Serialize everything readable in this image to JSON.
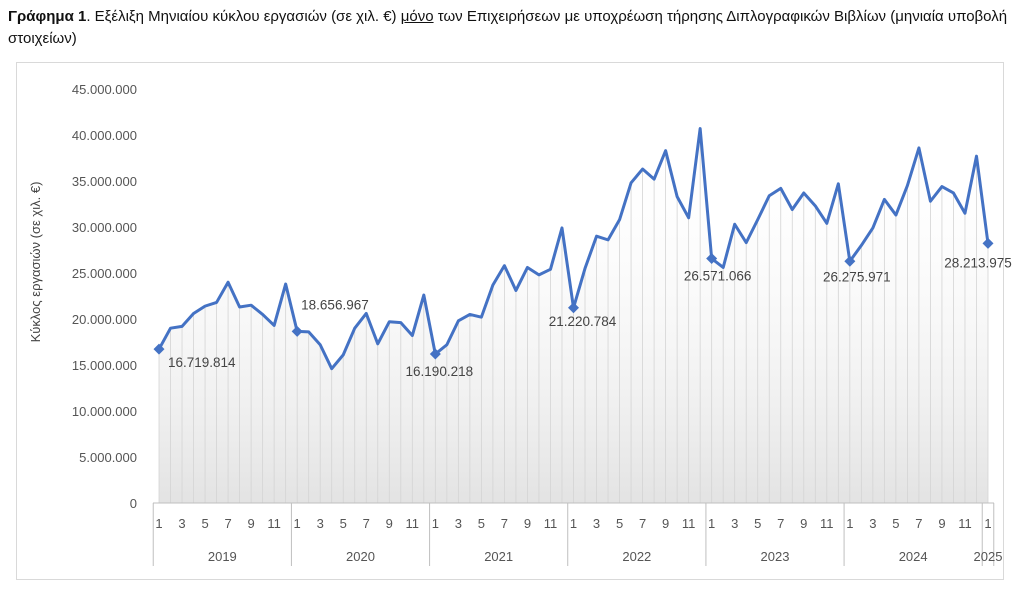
{
  "caption": {
    "label": "Γράφημα 1",
    "text_a": ". Εξέλιξη Μηνιαίου κύκλου εργασιών (σε χιλ. €) ",
    "emph": "μόνο",
    "text_b": " των Επιχειρήσεων με υποχρέωση τήρησης Διπλογραφικών Βιβλίων (μηνιαία υποβολή στοιχείων)"
  },
  "colors": {
    "line": "#4472c4",
    "grid": "#e6e6e6",
    "axis": "#bfbfbf"
  },
  "chart_data": {
    "type": "line",
    "ylabel": "Κύκλος εργασιών (σε χιλ. €)",
    "ylim": [
      0,
      45000000
    ],
    "ytick_values": [
      0,
      5000000,
      10000000,
      15000000,
      20000000,
      25000000,
      30000000,
      35000000,
      40000000,
      45000000
    ],
    "ytick_labels": [
      "0",
      "5.000.000",
      "10.000.000",
      "15.000.000",
      "20.000.000",
      "25.000.000",
      "30.000.000",
      "35.000.000",
      "40.000.000",
      "45.000.000"
    ],
    "month_tick_labels": [
      "1",
      "3",
      "5",
      "7",
      "9",
      "11"
    ],
    "years": [
      "2019",
      "2020",
      "2021",
      "2022",
      "2023",
      "2024",
      "2025"
    ],
    "grid": "vertical lines at each month, shaded area under the line",
    "series": [
      {
        "values": [
          16719814,
          19000000,
          19200000,
          20600000,
          21400000,
          21800000,
          24000000,
          21300000,
          21500000,
          20500000,
          19300000,
          23800000,
          18656967,
          18600000,
          17200000,
          14600000,
          16100000,
          19000000,
          20600000,
          17300000,
          19700000,
          19600000,
          18200000,
          22600000,
          16190218,
          17200000,
          19800000,
          20500000,
          20200000,
          23700000,
          25800000,
          23100000,
          25600000,
          24800000,
          25400000,
          29900000,
          21220784,
          25500000,
          29000000,
          28600000,
          30800000,
          34800000,
          36300000,
          35200000,
          38300000,
          33300000,
          31000000,
          40700000,
          26571066,
          25600000,
          30300000,
          28300000,
          30800000,
          33400000,
          34200000,
          31900000,
          33700000,
          32300000,
          30400000,
          34700000,
          26275971,
          28000000,
          29900000,
          33000000,
          31300000,
          34500000,
          38600000,
          32800000,
          34400000,
          33700000,
          31500000,
          37700000,
          28213975
        ]
      }
    ],
    "markers": [
      {
        "index": 0,
        "label": "16.719.814"
      },
      {
        "index": 12,
        "label": "18.656.967"
      },
      {
        "index": 24,
        "label": "16.190.218"
      },
      {
        "index": 36,
        "label": "21.220.784"
      },
      {
        "index": 48,
        "label": "26.571.066"
      },
      {
        "index": 60,
        "label": "26.275.971"
      },
      {
        "index": 72,
        "label": "28.213.975"
      }
    ]
  }
}
